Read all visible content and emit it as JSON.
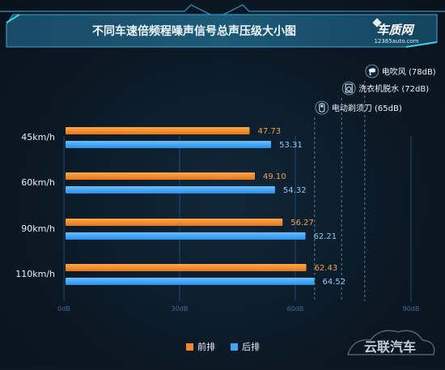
{
  "header": {
    "title": "不同车速倍频程噪声信号总声压级大小图",
    "brand_name": "车质网",
    "brand_url": "12365auto.com"
  },
  "watermark": "云联汽车",
  "colors": {
    "front": "#f08a2a",
    "rear": "#3fa7f5",
    "accent": "#2fd0e0",
    "label": "#e8f2fa",
    "value_front": "#f3a14a",
    "value_rear": "#8fcaf6",
    "axis_tick": "#3c6b9c"
  },
  "chart_data": {
    "type": "bar",
    "orientation": "horizontal",
    "title": "不同车速倍频程噪声信号总声压级大小图",
    "categories": [
      "45km/h",
      "60km/h",
      "90km/h",
      "110km/h"
    ],
    "series": [
      {
        "name": "前排",
        "values": [
          47.73,
          49.1,
          56.27,
          62.43
        ]
      },
      {
        "name": "后排",
        "values": [
          53.31,
          54.32,
          62.21,
          64.52
        ]
      }
    ],
    "value_labels": {
      "前排": [
        "47.73",
        "49.10",
        "56.27",
        "62.43"
      ],
      "后排": [
        "53.31",
        "54.32",
        "62.21",
        "64.52"
      ]
    },
    "xlim": [
      0,
      90
    ],
    "x_ticks": [
      0,
      30,
      60,
      90
    ],
    "x_tick_labels": [
      "0dB",
      "30dB",
      "60dB",
      "90dB"
    ],
    "references": [
      {
        "label": "电吹风 (78dB)",
        "value": 78,
        "icon": "hair-dryer-icon"
      },
      {
        "label": "洗衣机脱水 (72dB)",
        "value": 72,
        "icon": "washing-machine-icon"
      },
      {
        "label": "电动剃须刀 (65dB)",
        "value": 65,
        "icon": "electric-shaver-icon"
      }
    ],
    "legend": {
      "entries": [
        "前排",
        "后排"
      ],
      "position": "bottom-center"
    },
    "grid": true
  }
}
